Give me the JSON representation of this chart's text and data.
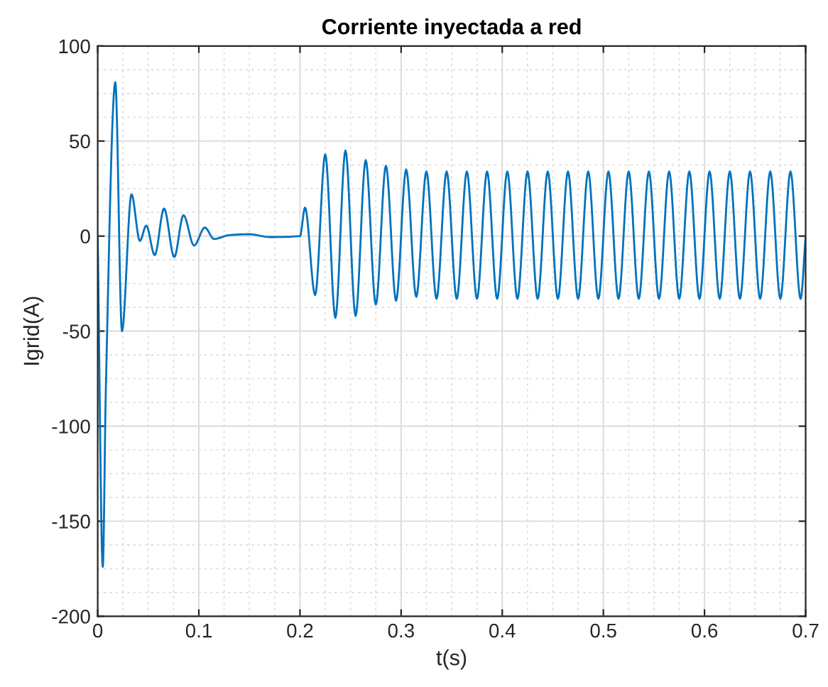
{
  "chart_data": {
    "type": "line",
    "title": "Corriente inyectada a red",
    "xlabel": "t(s)",
    "ylabel": "Igrid(A)",
    "xlim": [
      0,
      0.7
    ],
    "ylim": [
      -200,
      100
    ],
    "xticks": [
      0,
      0.1,
      0.2,
      0.3,
      0.4,
      0.5,
      0.6,
      0.7
    ],
    "yticks": [
      -200,
      -150,
      -100,
      -50,
      0,
      50,
      100
    ],
    "grid": true,
    "series": [
      {
        "color": "#0072bd",
        "x": [
          0,
          0.005,
          0.008,
          0.0174,
          0.024,
          0.0334,
          0.0417,
          0.048,
          0.0564,
          0.0656,
          0.0757,
          0.0848,
          0.0953,
          0.1059,
          0.115,
          0.13,
          0.15,
          0.17,
          0.2,
          0.205,
          0.215,
          0.225,
          0.235,
          0.245,
          0.255,
          0.265,
          0.275,
          0.285,
          0.295,
          0.305,
          0.315,
          0.325,
          0.335,
          0.345,
          0.355,
          0.365,
          0.375,
          0.385,
          0.395,
          0.405,
          0.415,
          0.425,
          0.435,
          0.445,
          0.455,
          0.465,
          0.475,
          0.485,
          0.495,
          0.505,
          0.515,
          0.525,
          0.535,
          0.545,
          0.555,
          0.565,
          0.575,
          0.585,
          0.595,
          0.605,
          0.615,
          0.625,
          0.635,
          0.645,
          0.655,
          0.665,
          0.675,
          0.685,
          0.695,
          0.7
        ],
        "values": [
          0,
          -174,
          -82,
          81,
          -50,
          22,
          -2.5,
          5.5,
          -10,
          14.5,
          -11,
          11,
          -5,
          4.5,
          -1.5,
          0.5,
          1,
          -0.5,
          0,
          15,
          -31,
          43,
          -43,
          45,
          -42,
          40,
          -36,
          37,
          -34,
          35,
          -32,
          34,
          -33,
          34,
          -33,
          34,
          -33,
          34,
          -33,
          34,
          -33,
          34,
          -33,
          34,
          -33,
          34,
          -33,
          34,
          -33,
          34,
          -33,
          34,
          -33,
          34,
          -33,
          34,
          -33,
          34,
          -33,
          34,
          -33,
          34,
          -33,
          34,
          -33,
          34,
          -33,
          34,
          -33,
          0
        ]
      }
    ]
  }
}
